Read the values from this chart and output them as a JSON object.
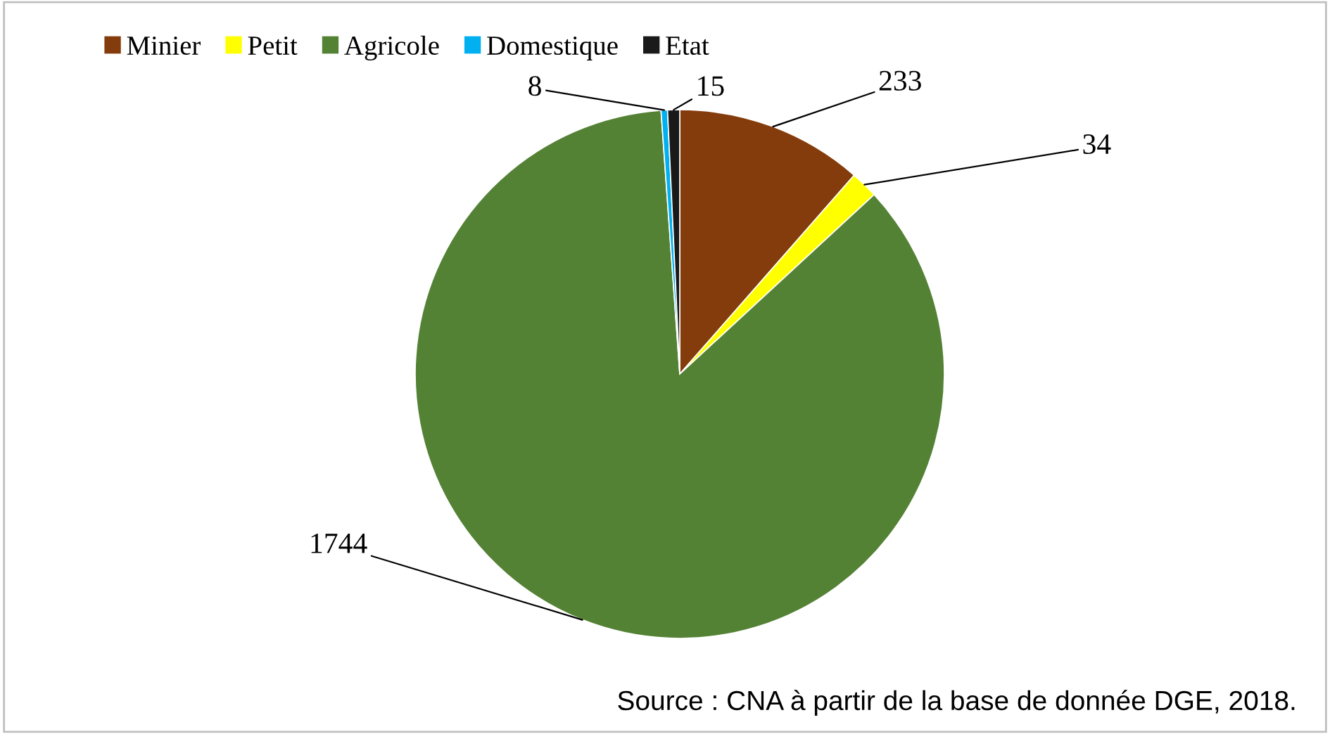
{
  "chart_data": {
    "type": "pie",
    "categories": [
      "Minier",
      "Petit",
      "Agricole",
      "Domestique",
      "Etat"
    ],
    "values": [
      233,
      34,
      1744,
      8,
      15
    ],
    "colors": [
      "#843c0c",
      "#ffff00",
      "#548235",
      "#00b0f0",
      "#1a1a1a"
    ],
    "data_labels": true,
    "legend": "top left",
    "annotations": [
      "Source : CNA à partir de la base de donnée DGE, 2018."
    ]
  }
}
